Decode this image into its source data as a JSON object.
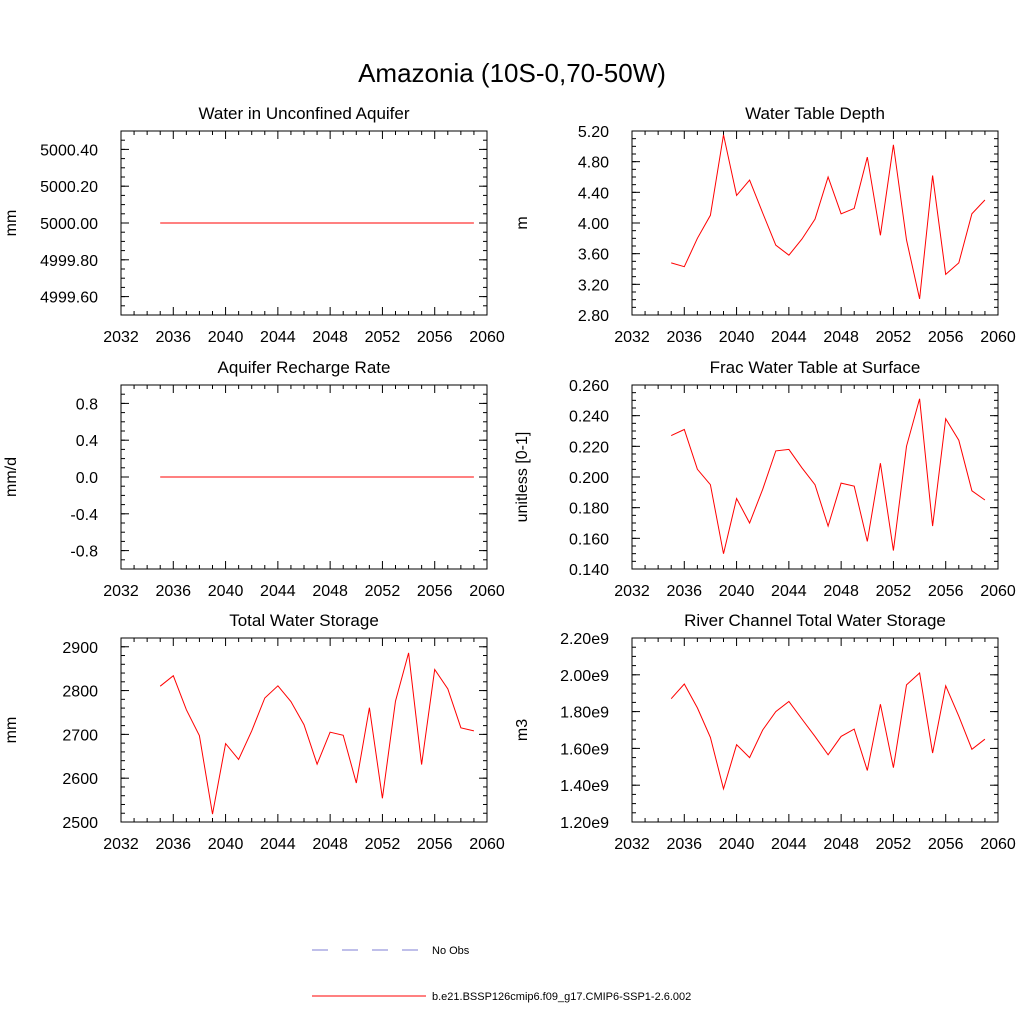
{
  "title": "Amazonia (10S-0,70-50W)",
  "legend": {
    "entries": [
      {
        "label": "No Obs",
        "color": "#7f7fd6",
        "style": "dashed"
      },
      {
        "label": "b.e21.BSSP126cmip6.f09_g17.CMIP6-SSP1-2.6.002",
        "color": "#ff0000",
        "style": "solid"
      }
    ]
  },
  "chart_data": [
    {
      "type": "line",
      "title": "Water in Unconfined Aquifer",
      "ylabel": "mm",
      "xlim": [
        2032,
        2060
      ],
      "ylim": [
        4999.5,
        5000.5
      ],
      "xticks": [
        2032,
        2036,
        2040,
        2044,
        2048,
        2052,
        2056,
        2060
      ],
      "yticks": [
        4999.6,
        4999.8,
        5000.0,
        5000.2,
        5000.4
      ],
      "ytick_labels": [
        "4999.60",
        "4999.80",
        "5000.00",
        "5000.20",
        "5000.40"
      ],
      "yminor": 0.05,
      "series": [
        {
          "name": "b.e21.BSSP126cmip6.f09_g17.CMIP6-SSP1-2.6.002",
          "color": "#ff0000",
          "x": [
            2035,
            2036,
            2037,
            2038,
            2039,
            2040,
            2041,
            2042,
            2043,
            2044,
            2045,
            2046,
            2047,
            2048,
            2049,
            2050,
            2051,
            2052,
            2053,
            2054,
            2055,
            2056,
            2057,
            2058,
            2059
          ],
          "values": [
            5000,
            5000,
            5000,
            5000,
            5000,
            5000,
            5000,
            5000,
            5000,
            5000,
            5000,
            5000,
            5000,
            5000,
            5000,
            5000,
            5000,
            5000,
            5000,
            5000,
            5000,
            5000,
            5000,
            5000,
            5000
          ]
        }
      ]
    },
    {
      "type": "line",
      "title": "Water Table Depth",
      "ylabel": "m",
      "xlim": [
        2032,
        2060
      ],
      "ylim": [
        2.8,
        5.2
      ],
      "xticks": [
        2032,
        2036,
        2040,
        2044,
        2048,
        2052,
        2056,
        2060
      ],
      "yticks": [
        2.8,
        3.2,
        3.6,
        4.0,
        4.4,
        4.8,
        5.2
      ],
      "ytick_labels": [
        "2.80",
        "3.20",
        "3.60",
        "4.00",
        "4.40",
        "4.80",
        "5.20"
      ],
      "yminor": 0.1,
      "series": [
        {
          "name": "b.e21.BSSP126cmip6.f09_g17.CMIP6-SSP1-2.6.002",
          "color": "#ff0000",
          "x": [
            2035,
            2036,
            2037,
            2038,
            2039,
            2040,
            2041,
            2042,
            2043,
            2044,
            2045,
            2046,
            2047,
            2048,
            2049,
            2050,
            2051,
            2052,
            2053,
            2054,
            2055,
            2056,
            2057,
            2058,
            2059
          ],
          "values": [
            3.48,
            3.43,
            3.8,
            4.1,
            5.15,
            4.36,
            4.56,
            4.13,
            3.71,
            3.58,
            3.79,
            4.05,
            4.6,
            4.12,
            4.19,
            4.86,
            3.84,
            5.02,
            3.78,
            3.01,
            4.62,
            3.33,
            3.48,
            4.12,
            4.3
          ]
        }
      ]
    },
    {
      "type": "line",
      "title": "Aquifer Recharge Rate",
      "ylabel": "mm/d",
      "xlim": [
        2032,
        2060
      ],
      "ylim": [
        -1.0,
        1.0
      ],
      "xticks": [
        2032,
        2036,
        2040,
        2044,
        2048,
        2052,
        2056,
        2060
      ],
      "yticks": [
        -0.8,
        -0.4,
        0.0,
        0.4,
        0.8
      ],
      "ytick_labels": [
        "-0.8",
        "-0.4",
        "0.0",
        "0.4",
        "0.8"
      ],
      "yminor": 0.1,
      "series": [
        {
          "name": "b.e21.BSSP126cmip6.f09_g17.CMIP6-SSP1-2.6.002",
          "color": "#ff0000",
          "x": [
            2035,
            2036,
            2037,
            2038,
            2039,
            2040,
            2041,
            2042,
            2043,
            2044,
            2045,
            2046,
            2047,
            2048,
            2049,
            2050,
            2051,
            2052,
            2053,
            2054,
            2055,
            2056,
            2057,
            2058,
            2059
          ],
          "values": [
            0,
            0,
            0,
            0,
            0,
            0,
            0,
            0,
            0,
            0,
            0,
            0,
            0,
            0,
            0,
            0,
            0,
            0,
            0,
            0,
            0,
            0,
            0,
            0,
            0
          ]
        }
      ]
    },
    {
      "type": "line",
      "title": "Frac Water Table at Surface",
      "ylabel": "unitless [0-1]",
      "xlim": [
        2032,
        2060
      ],
      "ylim": [
        0.14,
        0.26
      ],
      "xticks": [
        2032,
        2036,
        2040,
        2044,
        2048,
        2052,
        2056,
        2060
      ],
      "yticks": [
        0.14,
        0.16,
        0.18,
        0.2,
        0.22,
        0.24,
        0.26
      ],
      "ytick_labels": [
        "0.140",
        "0.160",
        "0.180",
        "0.200",
        "0.220",
        "0.240",
        "0.260"
      ],
      "yminor": 0.005,
      "series": [
        {
          "name": "b.e21.BSSP126cmip6.f09_g17.CMIP6-SSP1-2.6.002",
          "color": "#ff0000",
          "x": [
            2035,
            2036,
            2037,
            2038,
            2039,
            2040,
            2041,
            2042,
            2043,
            2044,
            2045,
            2046,
            2047,
            2048,
            2049,
            2050,
            2051,
            2052,
            2053,
            2054,
            2055,
            2056,
            2057,
            2058,
            2059
          ],
          "values": [
            0.227,
            0.231,
            0.205,
            0.195,
            0.15,
            0.186,
            0.17,
            0.192,
            0.217,
            0.218,
            0.206,
            0.195,
            0.168,
            0.196,
            0.194,
            0.158,
            0.209,
            0.152,
            0.22,
            0.251,
            0.168,
            0.238,
            0.224,
            0.191,
            0.185
          ]
        }
      ]
    },
    {
      "type": "line",
      "title": "Total Water Storage",
      "ylabel": "mm",
      "xlim": [
        2032,
        2060
      ],
      "ylim": [
        2500,
        2920
      ],
      "xticks": [
        2032,
        2036,
        2040,
        2044,
        2048,
        2052,
        2056,
        2060
      ],
      "yticks": [
        2500,
        2600,
        2700,
        2800,
        2900
      ],
      "ytick_labels": [
        "2500",
        "2600",
        "2700",
        "2800",
        "2900"
      ],
      "yminor": 20,
      "series": [
        {
          "name": "b.e21.BSSP126cmip6.f09_g17.CMIP6-SSP1-2.6.002",
          "color": "#ff0000",
          "x": [
            2035,
            2036,
            2037,
            2038,
            2039,
            2040,
            2041,
            2042,
            2043,
            2044,
            2045,
            2046,
            2047,
            2048,
            2049,
            2050,
            2051,
            2052,
            2053,
            2054,
            2055,
            2056,
            2057,
            2058,
            2059
          ],
          "values": [
            2810,
            2834,
            2756,
            2697,
            2518,
            2679,
            2643,
            2708,
            2783,
            2811,
            2775,
            2722,
            2632,
            2705,
            2698,
            2589,
            2761,
            2554,
            2776,
            2886,
            2631,
            2848,
            2804,
            2715,
            2708
          ]
        }
      ]
    },
    {
      "type": "line",
      "title": "River Channel Total Water Storage",
      "ylabel": "m3",
      "xlim": [
        2032,
        2060
      ],
      "ylim": [
        1200000000.0,
        2200000000.0
      ],
      "xticks": [
        2032,
        2036,
        2040,
        2044,
        2048,
        2052,
        2056,
        2060
      ],
      "yticks": [
        1200000000.0,
        1400000000.0,
        1600000000.0,
        1800000000.0,
        2000000000.0,
        2200000000.0
      ],
      "ytick_labels": [
        "1.20e9",
        "1.40e9",
        "1.60e9",
        "1.80e9",
        "2.00e9",
        "2.20e9"
      ],
      "yminor": 50000000.0,
      "series": [
        {
          "name": "b.e21.BSSP126cmip6.f09_g17.CMIP6-SSP1-2.6.002",
          "color": "#ff0000",
          "x": [
            2035,
            2036,
            2037,
            2038,
            2039,
            2040,
            2041,
            2042,
            2043,
            2044,
            2045,
            2046,
            2047,
            2048,
            2049,
            2050,
            2051,
            2052,
            2053,
            2054,
            2055,
            2056,
            2057,
            2058,
            2059
          ],
          "values": [
            1870000000.0,
            1950000000.0,
            1820000000.0,
            1660000000.0,
            1380000000.0,
            1620000000.0,
            1550000000.0,
            1700000000.0,
            1800000000.0,
            1855000000.0,
            1760000000.0,
            1665000000.0,
            1565000000.0,
            1665000000.0,
            1705000000.0,
            1480000000.0,
            1840000000.0,
            1495000000.0,
            1945000000.0,
            2010000000.0,
            1575000000.0,
            1940000000.0,
            1775000000.0,
            1595000000.0,
            1650000000.0
          ]
        }
      ]
    }
  ]
}
